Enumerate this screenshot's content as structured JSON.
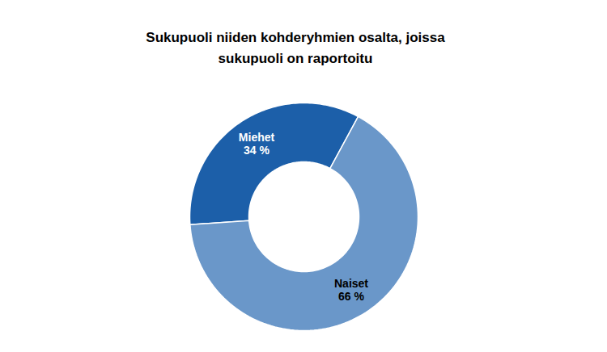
{
  "chart_data": {
    "type": "pie",
    "title": "Sukupuoli niiden kohderyhmien osalta, joissa sukupuoli on raportoitu",
    "categories": [
      "Miehet",
      "Naiset"
    ],
    "values": [
      34,
      66
    ],
    "value_labels": [
      "34 %",
      "66 %"
    ],
    "colors": [
      "#1c5fa9",
      "#6a97c9"
    ],
    "data_labels": true
  }
}
